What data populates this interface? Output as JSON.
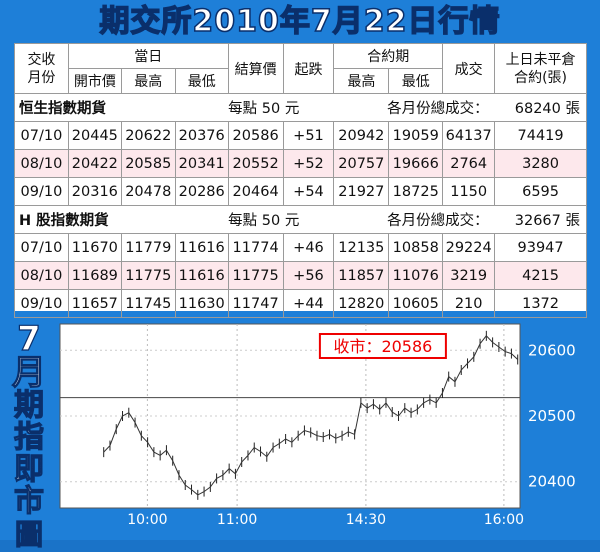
{
  "title": "期交所2010年7月22日行情",
  "headers": {
    "month": "交收月份",
    "month_l1": "交收",
    "month_l2": "月份",
    "day": "當日",
    "open": "開市價",
    "high": "最高",
    "low": "最低",
    "settle": "結算價",
    "change": "起跌",
    "contract": "合約期",
    "c_high": "最高",
    "c_low": "最低",
    "volume": "成交",
    "oi_l1": "上日未平倉",
    "oi_l2": "合約(張)"
  },
  "sections": [
    {
      "name": "恒生指數期貨",
      "per_point": "每點 50 元",
      "total_label": "各月份總成交：",
      "total": "68240 張",
      "rows": [
        [
          "07/10",
          "20445",
          "20622",
          "20376",
          "20586",
          "+51",
          "20942",
          "19059",
          "64137",
          "74419"
        ],
        [
          "08/10",
          "20422",
          "20585",
          "20341",
          "20552",
          "+52",
          "20757",
          "19666",
          "2764",
          "3280"
        ],
        [
          "09/10",
          "20316",
          "20478",
          "20286",
          "20464",
          "+54",
          "21927",
          "18725",
          "1150",
          "6595"
        ]
      ]
    },
    {
      "name": "H 股指數期貨",
      "per_point": "每點 50 元",
      "total_label": "各月份總成交：",
      "total": "32667 張",
      "rows": [
        [
          "07/10",
          "11670",
          "11779",
          "11616",
          "11774",
          "+46",
          "12135",
          "10858",
          "29224",
          "93947"
        ],
        [
          "08/10",
          "11689",
          "11775",
          "11616",
          "11775",
          "+56",
          "11857",
          "11076",
          "3219",
          "4215"
        ],
        [
          "09/10",
          "11657",
          "11745",
          "11630",
          "11747",
          "+44",
          "12820",
          "10605",
          "210",
          "1372"
        ]
      ]
    }
  ],
  "side_label": [
    "7",
    "月",
    "期",
    "指",
    "即",
    "市",
    "圖"
  ],
  "chart_data": {
    "type": "line",
    "close_label": "收市：20586",
    "x_ticks": [
      "10:00",
      "11:00",
      "14:30",
      "16:00"
    ],
    "y_ticks": [
      20400,
      20500,
      20600
    ],
    "ylim": [
      20360,
      20640
    ],
    "reference_line": 20528,
    "series": [
      {
        "values": [
          20445,
          20455,
          20480,
          20500,
          20505,
          20490,
          20470,
          20460,
          20445,
          20440,
          20448,
          20432,
          20410,
          20395,
          20388,
          20380,
          20385,
          20392,
          20405,
          20410,
          20420,
          20412,
          20430,
          20440,
          20452,
          20446,
          20438,
          20452,
          20458,
          20465,
          20460,
          20470,
          20478,
          20475,
          20470,
          20468,
          20472,
          20466,
          20470,
          20476,
          20472,
          20520,
          20512,
          20518,
          20510,
          20520,
          20506,
          20500,
          20512,
          20505,
          20510,
          20520,
          20525,
          20520,
          20535,
          20560,
          20552,
          20570,
          20580,
          20590,
          20610,
          20622,
          20612,
          20605,
          20598,
          20595,
          20586
        ]
      }
    ]
  }
}
